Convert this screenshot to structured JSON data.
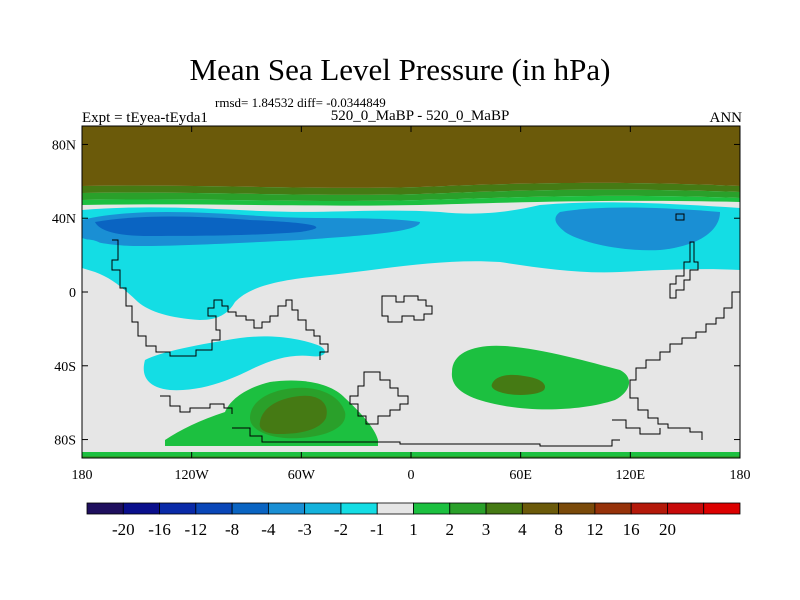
{
  "title": "Mean Sea Level Pressure (in hPa)",
  "stats": "rmsd= 1.84532 diff= -0.0344849",
  "experiment_label": "Expt = tEyea-tEyda1",
  "center_label": "520_0_MaBP - 520_0_MaBP",
  "season_label": "ANN",
  "map": {
    "lon_range": [
      -180,
      180
    ],
    "lat_range": [
      -90,
      90
    ],
    "lon_ticks": [
      {
        "value": -180,
        "label": "180"
      },
      {
        "value": -120,
        "label": "120W"
      },
      {
        "value": -60,
        "label": "60W"
      },
      {
        "value": 0,
        "label": "0"
      },
      {
        "value": 60,
        "label": "60E"
      },
      {
        "value": 120,
        "label": "120E"
      },
      {
        "value": 180,
        "label": "180"
      }
    ],
    "lat_ticks": [
      {
        "value": 80,
        "label": "80N"
      },
      {
        "value": 40,
        "label": "40N"
      },
      {
        "value": 0,
        "label": "0"
      },
      {
        "value": -40,
        "label": "40S"
      },
      {
        "value": -80,
        "label": "80S"
      }
    ],
    "background_color": "#e6e6e6"
  },
  "colorbar": {
    "colors": [
      "#1f0f5e",
      "#0a0f8c",
      "#0a2aa8",
      "#0a47b8",
      "#0a64c2",
      "#1a8fd4",
      "#14b2dc",
      "#14dde4",
      "#e6e6e6",
      "#1cc040",
      "#2aa02a",
      "#457a14",
      "#6b5a0a",
      "#7a4a0a",
      "#96320a",
      "#b4190a",
      "#c80a0a",
      "#dc0000"
    ],
    "labels": [
      "-20",
      "-16",
      "-12",
      "-8",
      "-4",
      "-3",
      "-2",
      "-1",
      "1",
      "2",
      "3",
      "4",
      "8",
      "12",
      "16",
      "20"
    ]
  }
}
